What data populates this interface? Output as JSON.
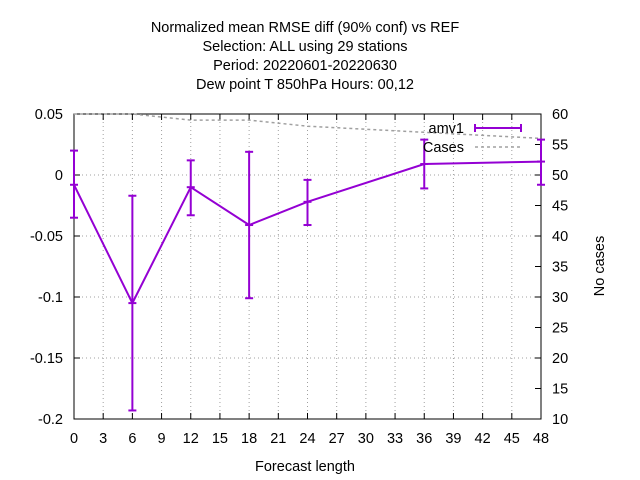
{
  "chart_data": {
    "type": "line",
    "title_lines": [
      "Normalized mean RMSE diff (90% conf) vs REF",
      "Selection: ALL using    29 stations",
      "Period: 20220601-20220630",
      "Dew point T 850hPa   Hours:  00,12"
    ],
    "xlabel": "Forecast length",
    "ylabel": "",
    "y2label": "No cases",
    "xlim": [
      0,
      48
    ],
    "ylim": [
      -0.2,
      0.05
    ],
    "y2lim": [
      10,
      60
    ],
    "x_ticks": [
      0,
      3,
      6,
      9,
      12,
      15,
      18,
      21,
      24,
      27,
      30,
      33,
      36,
      39,
      42,
      45,
      48
    ],
    "y_ticks": [
      0.05,
      0,
      -0.05,
      -0.1,
      -0.15,
      -0.2
    ],
    "y_tick_labels": [
      "0.05",
      "0",
      "-0.05",
      "-0.1",
      "-0.15",
      "-0.2"
    ],
    "y2_ticks": [
      60,
      55,
      50,
      45,
      40,
      35,
      30,
      25,
      20,
      15,
      10
    ],
    "grid": true,
    "legend_position": "top-right",
    "series": [
      {
        "name": "amv1",
        "color": "#9400d3",
        "x": [
          0,
          6,
          12,
          18,
          24,
          36,
          48
        ],
        "y": [
          -0.008,
          -0.105,
          -0.01,
          -0.041,
          -0.022,
          0.009,
          0.011
        ],
        "err_low": [
          -0.035,
          -0.193,
          -0.033,
          -0.101,
          -0.041,
          -0.011,
          -0.008
        ],
        "err_high": [
          0.02,
          -0.017,
          0.012,
          0.019,
          -0.004,
          0.029,
          0.029
        ]
      },
      {
        "name": "Cases",
        "color": "#a0a0a0",
        "axis": "y2",
        "x": [
          0,
          6,
          12,
          18,
          24,
          36,
          48
        ],
        "y": [
          60,
          60,
          59,
          59,
          58,
          57,
          56
        ]
      }
    ]
  }
}
